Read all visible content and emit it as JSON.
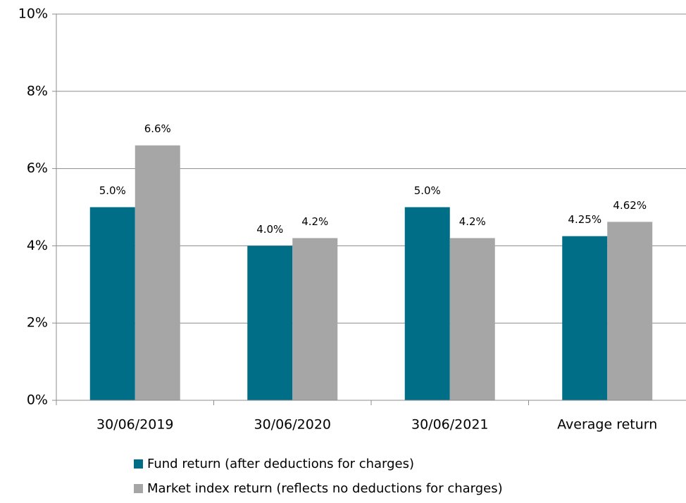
{
  "chart_data": {
    "type": "bar",
    "categories": [
      "30/06/2019",
      "30/06/2020",
      "30/06/2021",
      "Average return"
    ],
    "series": [
      {
        "name": "Fund return (after deductions for charges)",
        "color": "#006e87",
        "values": [
          5.0,
          4.0,
          5.0,
          4.25
        ],
        "value_labels": [
          "5.0%",
          "4.0%",
          "5.0%",
          "4.25%"
        ]
      },
      {
        "name": "Market index return (reflects no deductions for charges)",
        "color": "#a6a6a6",
        "values": [
          6.6,
          4.2,
          4.2,
          4.62
        ],
        "value_labels": [
          "6.6%",
          "4.2%",
          "4.2%",
          "4.62%"
        ]
      }
    ],
    "ylim": [
      0,
      10
    ],
    "yticks": [
      {
        "value": 0,
        "label": "0%"
      },
      {
        "value": 2,
        "label": "2%"
      },
      {
        "value": 4,
        "label": "4%"
      },
      {
        "value": 6,
        "label": "6%"
      },
      {
        "value": 8,
        "label": "8%"
      },
      {
        "value": 10,
        "label": "10%"
      }
    ],
    "grid": true
  }
}
